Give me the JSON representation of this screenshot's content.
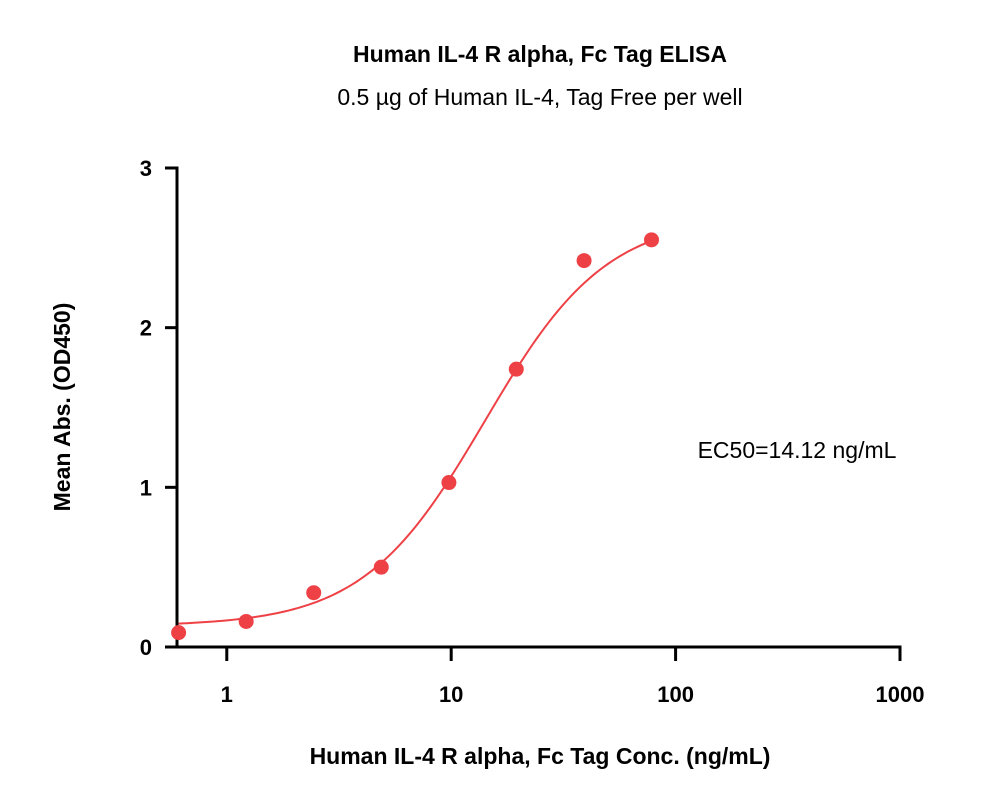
{
  "chart_data": {
    "type": "scatter",
    "title": "Human IL-4 R alpha, Fc Tag ELISA",
    "subtitle": "0.5 µg of Human IL-4, Tag Free per well",
    "xlabel": "Human IL-4 R alpha, Fc Tag Conc. (ng/mL)",
    "ylabel": "Mean Abs. (OD450)",
    "x_scale": "log",
    "xlim": [
      0.6,
      1000
    ],
    "ylim": [
      0,
      3
    ],
    "x_ticks": [
      1,
      10,
      100,
      1000
    ],
    "x_tick_labels": [
      "1",
      "10",
      "100",
      "1000"
    ],
    "y_ticks": [
      0,
      1,
      2,
      3
    ],
    "y_tick_labels": [
      "0",
      "1",
      "2",
      "3"
    ],
    "grid": false,
    "series": [
      {
        "x": [
          0.61,
          1.22,
          2.44,
          4.88,
          9.77,
          19.5,
          39.1,
          78.1
        ],
        "y": [
          0.09,
          0.16,
          0.34,
          0.5,
          1.03,
          1.74,
          2.42,
          2.55
        ]
      }
    ],
    "fit_curve": {
      "model": "4PL",
      "bottom": 0.13,
      "top": 2.7,
      "ec50": 14.12,
      "hill": 1.6,
      "x_range": [
        0.61,
        78.1
      ]
    },
    "annotation": "EC50=14.12 ng/mL",
    "colors": {
      "points": "#ee4146",
      "curve": "#ee4146",
      "axis": "#000000"
    }
  }
}
